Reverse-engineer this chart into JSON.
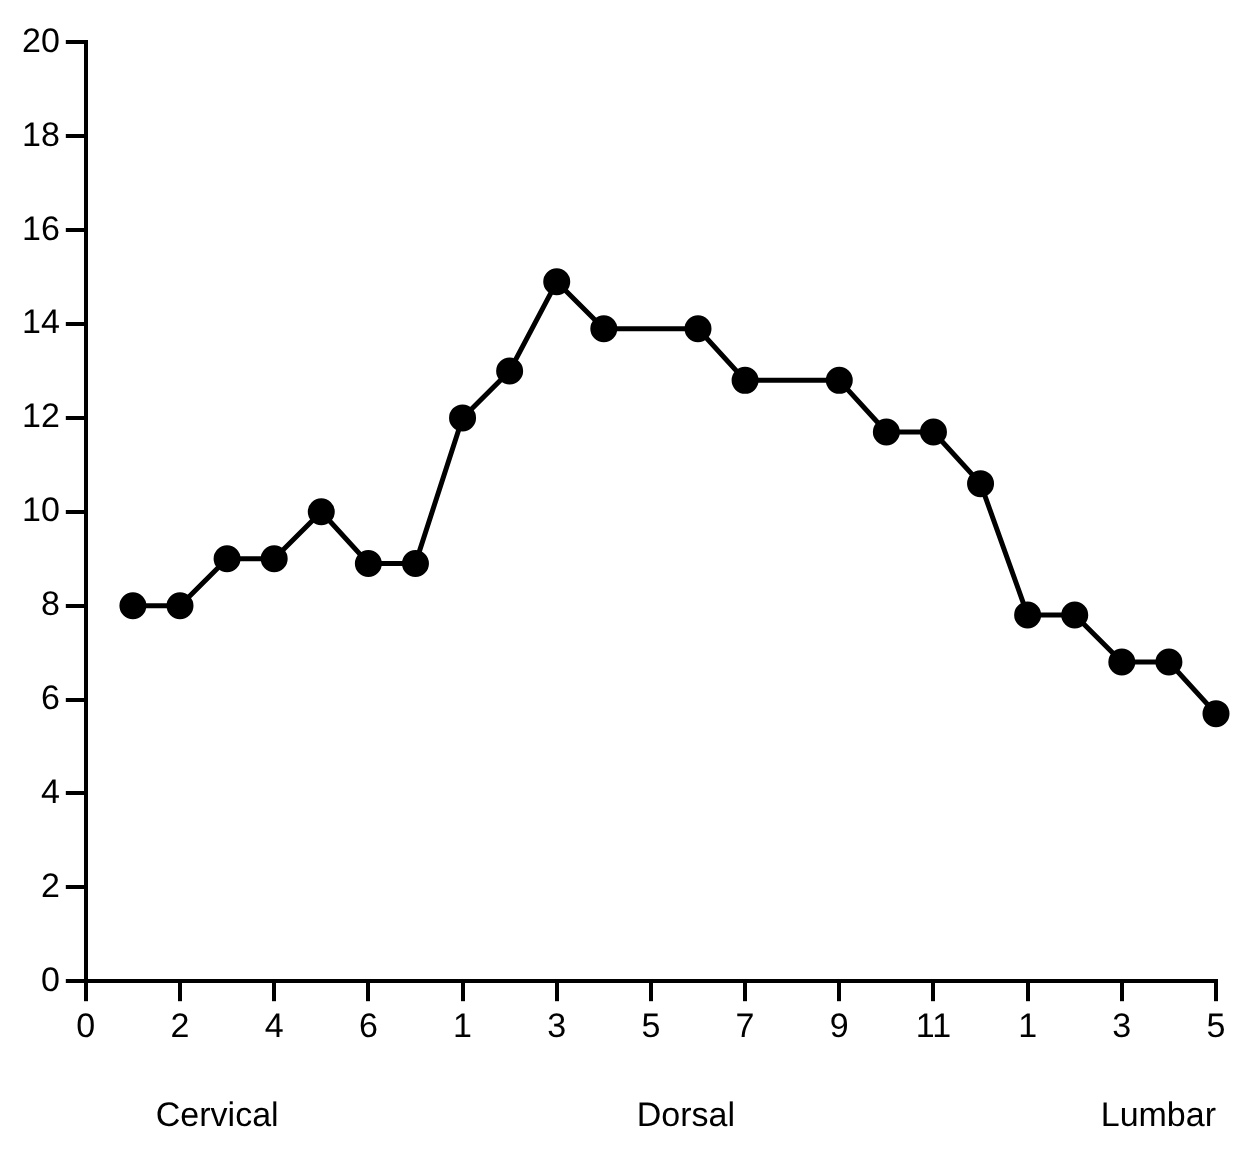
{
  "chart_data": {
    "type": "line",
    "categories": [
      "0",
      null,
      "2",
      null,
      "4",
      null,
      "6",
      null,
      "1",
      null,
      "3",
      null,
      "5",
      null,
      "7",
      null,
      "9",
      null,
      "11",
      null,
      "1",
      null,
      "3",
      null,
      "5"
    ],
    "series": [
      {
        "color": "#000000",
        "values": [
          null,
          8,
          8,
          9,
          9,
          10,
          8.9,
          8.9,
          12,
          13,
          14.9,
          13.9,
          null,
          13.9,
          12.8,
          null,
          12.8,
          11.7,
          11.7,
          10.6,
          7.8,
          7.8,
          6.8,
          6.8,
          5.7
        ]
      }
    ],
    "ylim": [
      0,
      20
    ],
    "yticks": [
      0,
      2,
      4,
      6,
      8,
      10,
      12,
      14,
      16,
      18,
      20
    ],
    "annotations": [
      "Cervical",
      "Dorsal",
      "Lumbar"
    ],
    "grid": false,
    "legend": false,
    "marker": "circle",
    "line_style": "solid"
  }
}
